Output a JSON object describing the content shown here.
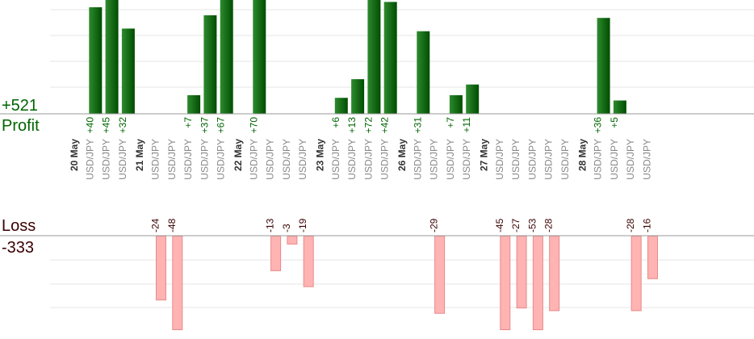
{
  "profit": {
    "total": "+521",
    "label": "Profit",
    "color": "#006400"
  },
  "loss": {
    "label": "Loss",
    "total": "-333",
    "color": "#3a0000"
  },
  "colors": {
    "profit_bar_light": "#2e8b2e",
    "profit_bar_dark": "#004d00",
    "loss_bar_fill": "#ffb3b3",
    "loss_bar_stroke": "#e88a8a",
    "profit_label": "#006400",
    "loss_label": "#3a0000",
    "date_label": "#333333",
    "pair_label": "#888888",
    "grid": "#e6e6e6",
    "axis": "#999999"
  },
  "chart_data": {
    "type": "bar",
    "scale_note": "",
    "days": [
      {
        "date": "20 May",
        "trades": [
          {
            "pair": "USD/JPY",
            "value": 40
          },
          {
            "pair": "USD/JPY",
            "value": 45
          },
          {
            "pair": "USD/JPY",
            "value": 32
          }
        ]
      },
      {
        "date": "21 May",
        "trades": [
          {
            "pair": "USD/JPY",
            "value": -24
          },
          {
            "pair": "USD/JPY",
            "value": -48
          },
          {
            "pair": "USD/JPY",
            "value": 7
          },
          {
            "pair": "USD/JPY",
            "value": 37
          },
          {
            "pair": "USD/JPY",
            "value": 67
          }
        ]
      },
      {
        "date": "22 May",
        "trades": [
          {
            "pair": "USD/JPY",
            "value": 70
          },
          {
            "pair": "USD/JPY",
            "value": -13
          },
          {
            "pair": "USD/JPY",
            "value": -3
          },
          {
            "pair": "USD/JPY",
            "value": -19
          }
        ]
      },
      {
        "date": "23 May",
        "trades": [
          {
            "pair": "USD/JPY",
            "value": 6
          },
          {
            "pair": "USD/JPY",
            "value": 13
          },
          {
            "pair": "USD/JPY",
            "value": 72
          },
          {
            "pair": "USD/JPY",
            "value": 42
          }
        ]
      },
      {
        "date": "26 May",
        "trades": [
          {
            "pair": "USD/JPY",
            "value": 31
          },
          {
            "pair": "USD/JPY",
            "value": -29
          },
          {
            "pair": "USD/JPY",
            "value": 7
          },
          {
            "pair": "USD/JPY",
            "value": 11
          }
        ]
      },
      {
        "date": "27 May",
        "trades": [
          {
            "pair": "USD/JPY",
            "value": -45
          },
          {
            "pair": "USD/JPY",
            "value": -27
          },
          {
            "pair": "USD/JPY",
            "value": -53
          },
          {
            "pair": "USD/JPY",
            "value": -28
          },
          {
            "pair": "USD/JPY",
            "value": 0
          }
        ]
      },
      {
        "date": "28 May",
        "trades": [
          {
            "pair": "USD/JPY",
            "value": 36
          },
          {
            "pair": "USD/JPY",
            "value": 5
          },
          {
            "pair": "USD/JPY",
            "value": -28
          },
          {
            "pair": "USD/JPY",
            "value": -16
          }
        ]
      }
    ]
  }
}
